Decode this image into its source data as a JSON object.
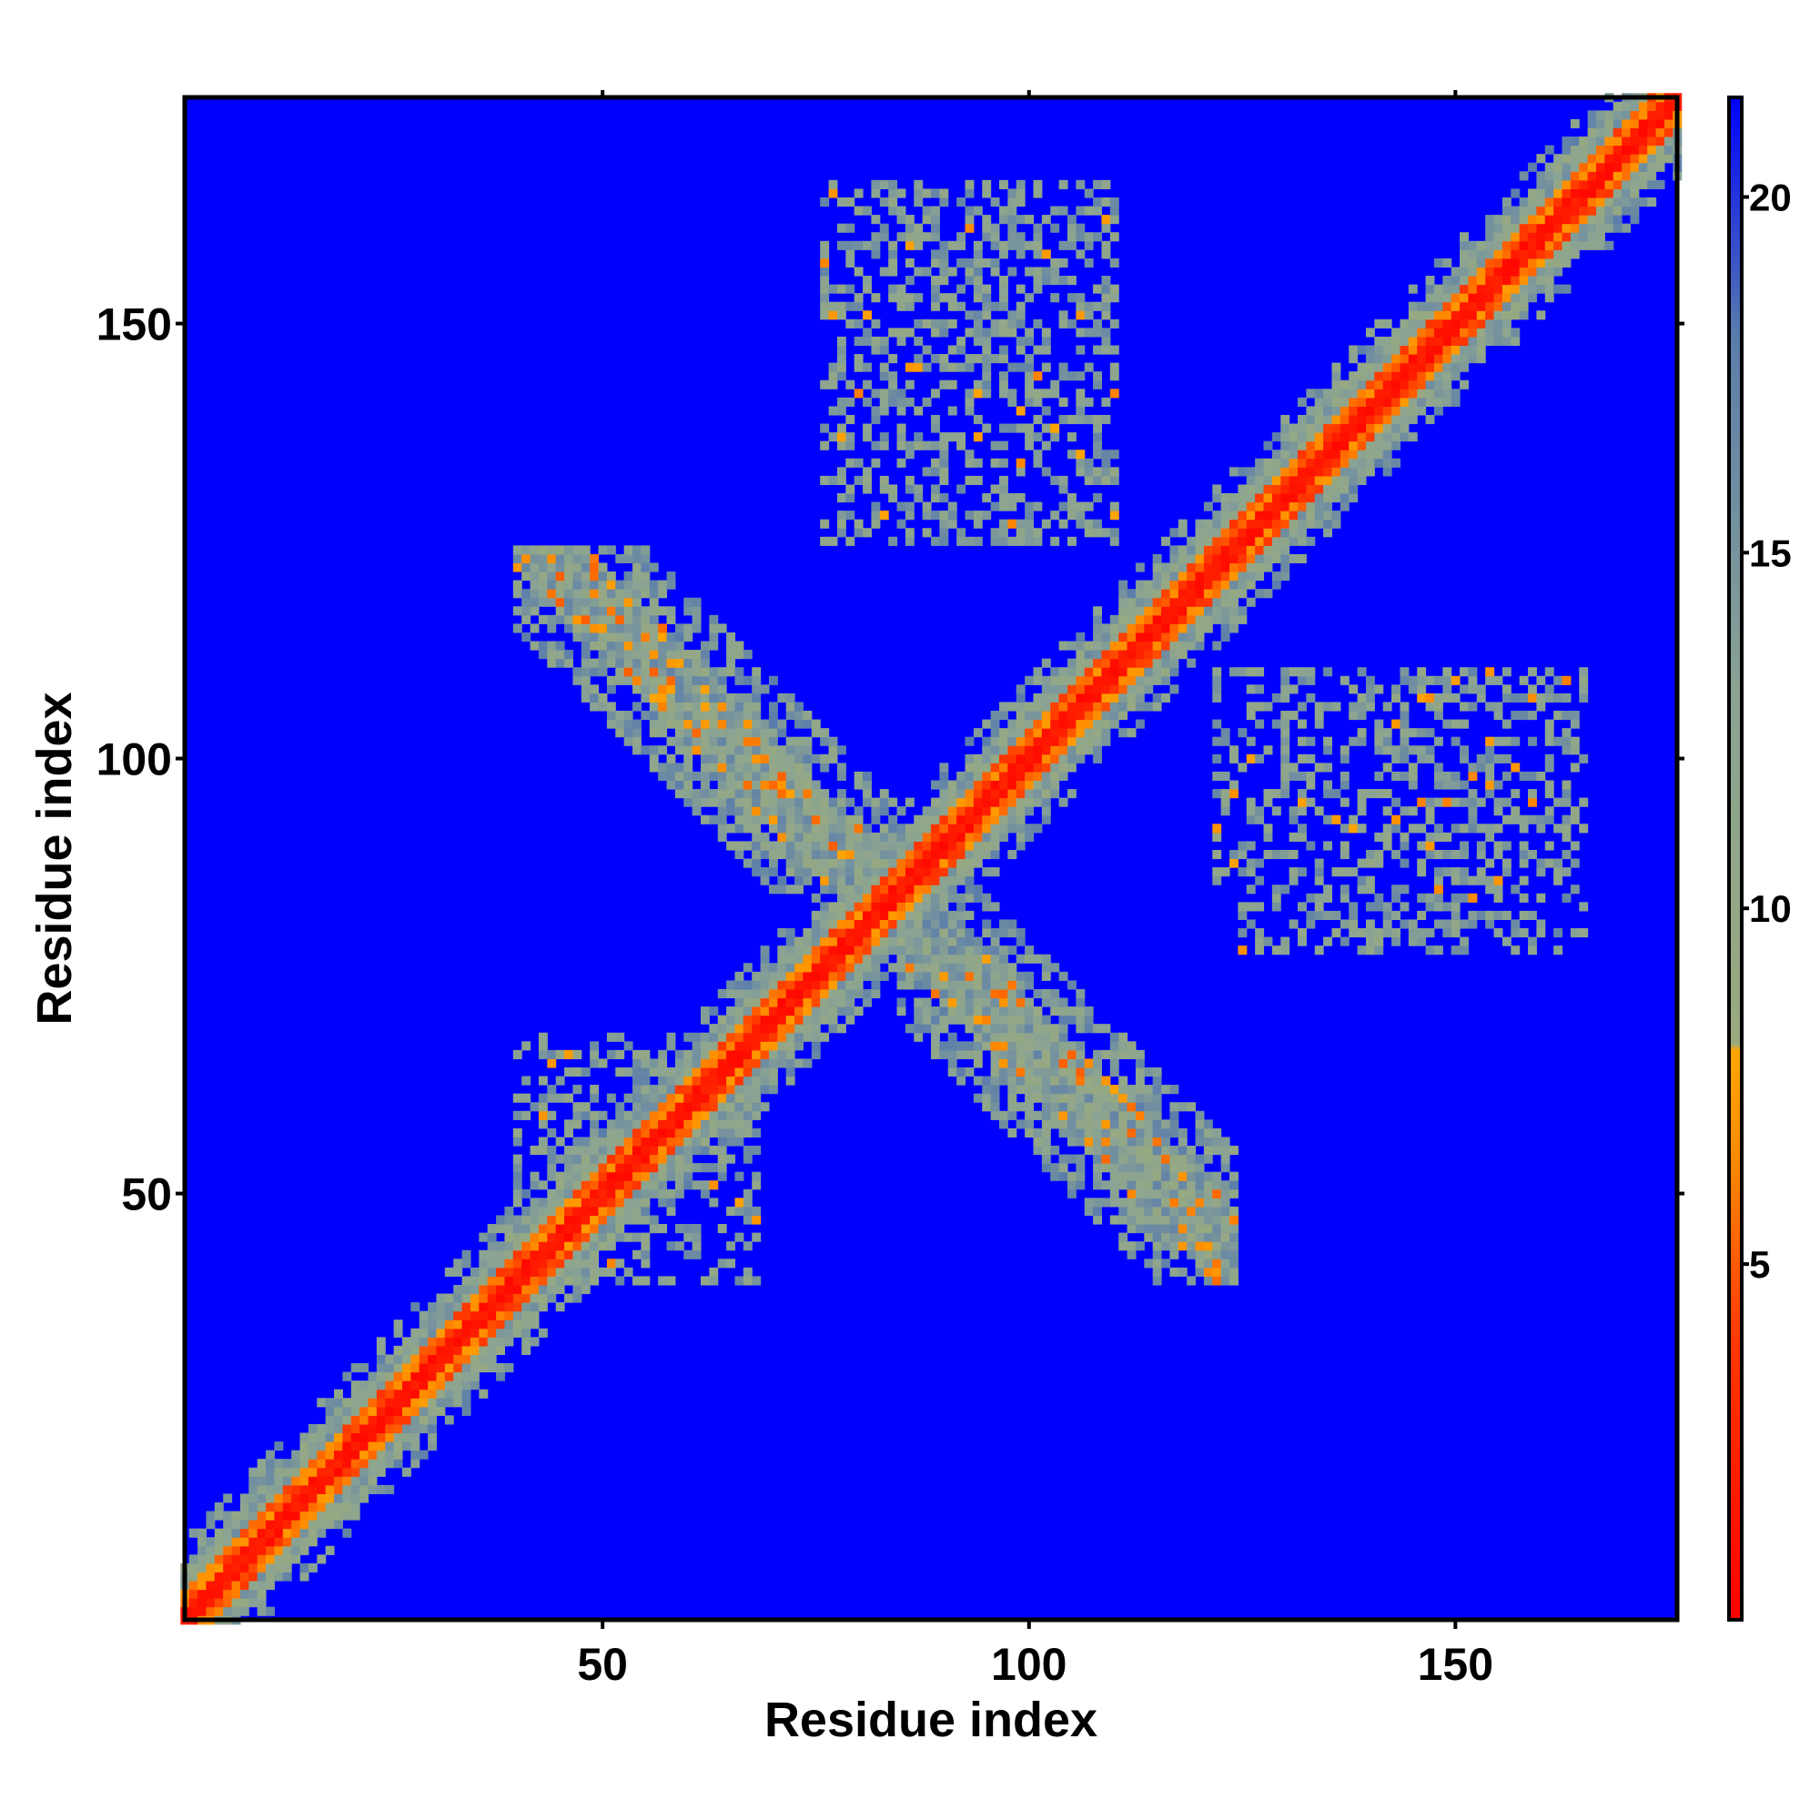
{
  "chart_data": {
    "type": "heatmap",
    "title": "",
    "xlabel": "Residue index",
    "ylabel": "Residue index",
    "xlim": [
      1,
      176
    ],
    "ylim": [
      1,
      176
    ],
    "x_ticks": [
      50,
      100,
      150
    ],
    "y_ticks": [
      50,
      100,
      150
    ],
    "x_tick_labels": [
      "50",
      "100",
      "150"
    ],
    "y_tick_labels": [
      "50",
      "100",
      "150"
    ],
    "value_range": [
      0,
      21.4
    ],
    "cell_size_residues": 1,
    "colorbar": {
      "ticks": [
        5,
        10,
        15,
        20
      ],
      "tick_labels": [
        "5",
        "10",
        "15",
        "20"
      ],
      "range": [
        0,
        21.4
      ],
      "stops": [
        {
          "value": 0,
          "color": "#ff0000"
        },
        {
          "value": 4,
          "color": "#ff3a00"
        },
        {
          "value": 6.5,
          "color": "#ff8c00"
        },
        {
          "value": 8,
          "color": "#ffa500"
        },
        {
          "value": 8.1,
          "color": "#9aaa7e"
        },
        {
          "value": 13,
          "color": "#8aa393"
        },
        {
          "value": 18,
          "color": "#5b7dab"
        },
        {
          "value": 21.4,
          "color": "#0000ff"
        }
      ]
    },
    "background_value": 21.4,
    "background_color": "#0000ff",
    "diagonal_band": {
      "core_halfwidth": 1.5,
      "mid_halfwidth": 3.5,
      "outer_halfwidth": 6
    },
    "contact_regions": [
      {
        "name": "antiparallel arm upper-left",
        "x_range": [
          40,
          85
        ],
        "y_range": [
          85,
          124
        ]
      },
      {
        "name": "antiparallel arm lower-right",
        "x_range": [
          85,
          124
        ],
        "y_range": [
          40,
          85
        ]
      },
      {
        "name": "upper patch",
        "x_range": [
          76,
          110
        ],
        "y_range": [
          125,
          166
        ]
      },
      {
        "name": "right patch",
        "x_range": [
          122,
          165
        ],
        "y_range": [
          78,
          110
        ]
      },
      {
        "name": "near-diagonal lower cluster",
        "x_range": [
          40,
          68
        ],
        "y_range": [
          40,
          68
        ]
      }
    ],
    "grid": false,
    "legend": "colorbar right"
  }
}
